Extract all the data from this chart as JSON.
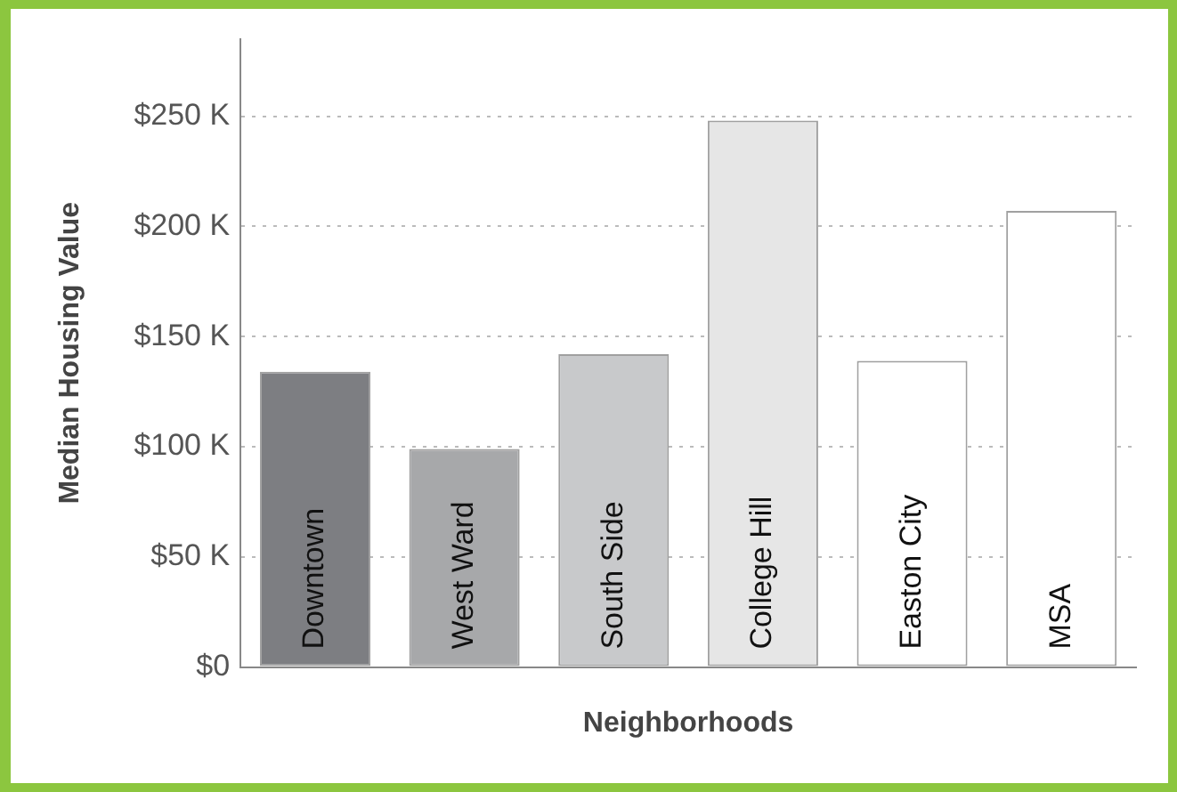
{
  "chart_data": {
    "type": "bar",
    "xlabel": "Neighborhoods",
    "ylabel": "Median Housing Value",
    "categories": [
      "Downtown",
      "West Ward",
      "South Side",
      "College Hill",
      "Easton City",
      "MSA"
    ],
    "values": [
      134,
      99,
      142,
      248,
      139,
      207
    ],
    "colors": [
      "#7d7e82",
      "#a7a8aa",
      "#c8c9cb",
      "#e6e6e6",
      "#ffffff",
      "#ffffff"
    ],
    "ylim": [
      0,
      285
    ],
    "yticks": [
      {
        "value": 0,
        "label": "$0"
      },
      {
        "value": 50,
        "label": "$50 K"
      },
      {
        "value": 100,
        "label": "$100 K"
      },
      {
        "value": 150,
        "label": "$150 K"
      },
      {
        "value": 200,
        "label": "$200 K"
      },
      {
        "value": 250,
        "label": "$250 K"
      }
    ],
    "grid": "y",
    "legend": false
  }
}
